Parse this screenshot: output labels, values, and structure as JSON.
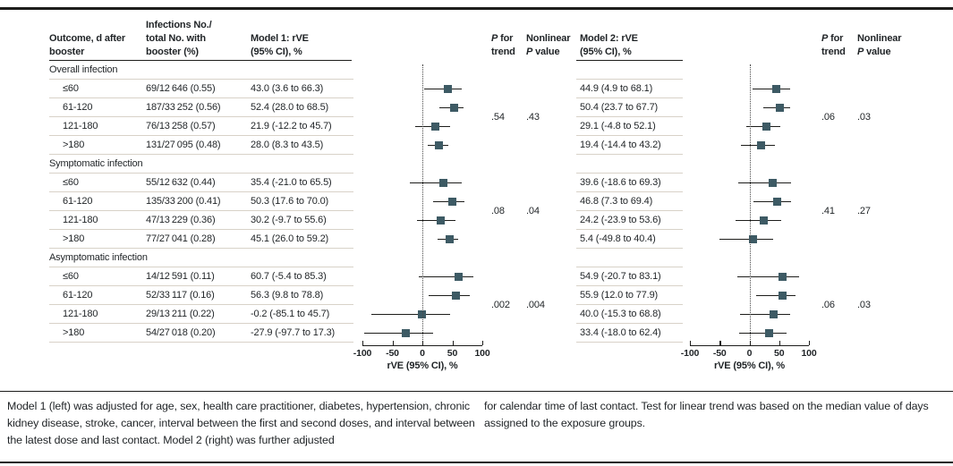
{
  "colors": {
    "marker": "#3d5a64",
    "ci_line": "#1d1d1b",
    "text": "#1f2326",
    "rule_light": "#d8d2c8",
    "rule_dark": "#1d1d1b",
    "dotted_line": "#4a4a4a"
  },
  "headers": {
    "outcome": "Outcome, d after\nbooster",
    "infections": "Infections No./\ntotal No. with\nbooster (%)",
    "model1": "Model 1: rVE\n(95% CI), %",
    "model2": "Model 2: rVE\n(95% CI), %",
    "p_for": "P for",
    "trend": "trend",
    "nonlinear": "Nonlinear",
    "p_value": "P value"
  },
  "chart_data": {
    "type": "forest",
    "x_axis": {
      "label": "rVE (95% CI), %",
      "range": [
        -100,
        100
      ],
      "ticks": [
        "-100",
        "-50",
        "0",
        "50",
        "100"
      ],
      "tick_values": [
        -100,
        -50,
        0,
        50,
        100
      ],
      "reference_line": 0
    },
    "plots": [
      "Model 1",
      "Model 2"
    ],
    "sections": [
      {
        "label": "Overall infection",
        "rows": [
          {
            "outcome": "≤60",
            "infections": "69/12 646 (0.55)",
            "m1_label": "43.0 (3.6 to 66.3)",
            "m1": [
              43.0,
              3.6,
              66.3
            ],
            "m2_label": "44.9 (4.9 to 68.1)",
            "m2": [
              44.9,
              4.9,
              68.1
            ]
          },
          {
            "outcome": "61-120",
            "infections": "187/33 252 (0.56)",
            "m1_label": "52.4 (28.0 to 68.5)",
            "m1": [
              52.4,
              28.0,
              68.5
            ],
            "m2_label": "50.4 (23.7 to 67.7)",
            "m2": [
              50.4,
              23.7,
              67.7
            ]
          },
          {
            "outcome": "121-180",
            "infections": "76/13 258 (0.57)",
            "m1_label": "21.9 (-12.2 to 45.7)",
            "m1": [
              21.9,
              -12.2,
              45.7
            ],
            "m2_label": "29.1 (-4.8 to 52.1)",
            "m2": [
              29.1,
              -4.8,
              52.1
            ]
          },
          {
            "outcome": ">180",
            "infections": "131/27 095 (0.48)",
            "m1_label": "28.0 (8.3 to 43.5)",
            "m1": [
              28.0,
              8.3,
              43.5
            ],
            "m2_label": "19.4 (-14.4 to 43.2)",
            "m2": [
              19.4,
              -14.4,
              43.2
            ]
          }
        ],
        "m1_p_trend": ".54",
        "m1_p_nonlinear": ".43",
        "m2_p_trend": ".06",
        "m2_p_nonlinear": ".03"
      },
      {
        "label": "Symptomatic infection",
        "rows": [
          {
            "outcome": "≤60",
            "infections": "55/12 632 (0.44)",
            "m1_label": "35.4 (-21.0 to 65.5)",
            "m1": [
              35.4,
              -21.0,
              65.5
            ],
            "m2_label": "39.6 (-18.6 to 69.3)",
            "m2": [
              39.6,
              -18.6,
              69.3
            ]
          },
          {
            "outcome": "61-120",
            "infections": "135/33 200 (0.41)",
            "m1_label": "50.3 (17.6 to 70.0)",
            "m1": [
              50.3,
              17.6,
              70.0
            ],
            "m2_label": "46.8 (7.3 to 69.4)",
            "m2": [
              46.8,
              7.3,
              69.4
            ]
          },
          {
            "outcome": "121-180",
            "infections": "47/13 229 (0.36)",
            "m1_label": "30.2 (-9.7 to 55.6)",
            "m1": [
              30.2,
              -9.7,
              55.6
            ],
            "m2_label": "24.2 (-23.9 to 53.6)",
            "m2": [
              24.2,
              -23.9,
              53.6
            ]
          },
          {
            "outcome": ">180",
            "infections": "77/27 041 (0.28)",
            "m1_label": "45.1 (26.0 to 59.2)",
            "m1": [
              45.1,
              26.0,
              59.2
            ],
            "m2_label": "5.4 (-49.8 to 40.4)",
            "m2": [
              5.4,
              -49.8,
              40.4
            ]
          }
        ],
        "m1_p_trend": ".08",
        "m1_p_nonlinear": ".04",
        "m2_p_trend": ".41",
        "m2_p_nonlinear": ".27"
      },
      {
        "label": "Asymptomatic infection",
        "rows": [
          {
            "outcome": "≤60",
            "infections": "14/12 591 (0.11)",
            "m1_label": "60.7 (-5.4 to 85.3)",
            "m1": [
              60.7,
              -5.4,
              85.3
            ],
            "m2_label": "54.9 (-20.7 to 83.1)",
            "m2": [
              54.9,
              -20.7,
              83.1
            ]
          },
          {
            "outcome": "61-120",
            "infections": "52/33 117 (0.16)",
            "m1_label": "56.3 (9.8 to 78.8)",
            "m1": [
              56.3,
              9.8,
              78.8
            ],
            "m2_label": "55.9 (12.0 to 77.9)",
            "m2": [
              55.9,
              12.0,
              77.9
            ]
          },
          {
            "outcome": "121-180",
            "infections": "29/13 211 (0.22)",
            "m1_label": "-0.2 (-85.1 to 45.7)",
            "m1": [
              -0.2,
              -85.1,
              45.7
            ],
            "m2_label": "40.0 (-15.3 to 68.8)",
            "m2": [
              40.0,
              -15.3,
              68.8
            ]
          },
          {
            "outcome": ">180",
            "infections": "54/27 018 (0.20)",
            "m1_label": "-27.9 (-97.7 to 17.3)",
            "m1": [
              -27.9,
              -97.7,
              17.3
            ],
            "m2_label": "33.4 (-18.0 to 62.4)",
            "m2": [
              33.4,
              -18.0,
              62.4
            ]
          }
        ],
        "m1_p_trend": ".002",
        "m1_p_nonlinear": ".004",
        "m2_p_trend": ".06",
        "m2_p_nonlinear": ".03"
      }
    ]
  },
  "footnotes": {
    "left": "Model 1 (left) was adjusted for age, sex, health care practitioner, diabetes, hypertension, chronic kidney disease, stroke, cancer, interval between the first and second doses, and interval between the latest dose and last contact. Model 2 (right) was further adjusted",
    "right": "for calendar time of last contact. Test for linear trend was based on the median value of days assigned to the exposure groups."
  }
}
